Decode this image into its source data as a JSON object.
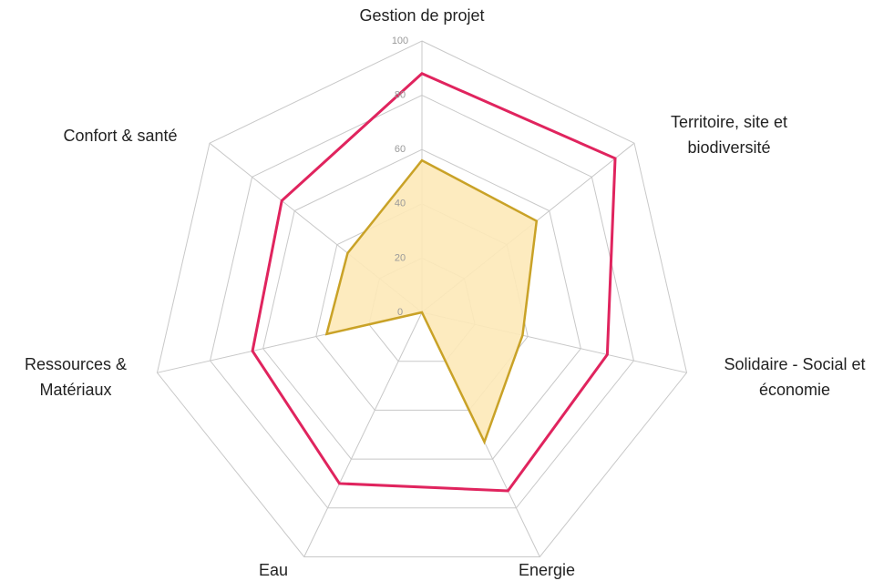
{
  "chart_data": {
    "type": "radar",
    "categories": [
      [
        "Gestion de projet"
      ],
      [
        "Territoire, site et",
        "biodiversité"
      ],
      [
        "Solidaire - Social et",
        "économie"
      ],
      [
        "Energie"
      ],
      [
        "Eau"
      ],
      [
        "Ressources &",
        "Matériaux"
      ],
      [
        "Confort & santé"
      ]
    ],
    "series": [
      {
        "color": "#e0245e",
        "fill": "none",
        "values": [
          88,
          91,
          70,
          73,
          70,
          64,
          66
        ]
      },
      {
        "color": "#c9a227",
        "fill": "#fde9b8",
        "values": [
          56,
          54,
          38,
          53,
          0,
          36,
          35
        ]
      }
    ],
    "ylim": [
      0,
      100
    ],
    "yticks": [
      0,
      20,
      40,
      60,
      80,
      100
    ],
    "grid": true
  }
}
